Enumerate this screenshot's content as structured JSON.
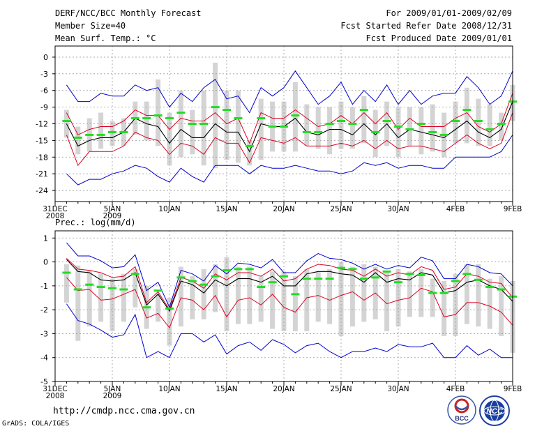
{
  "header": {
    "title": "DERF/NCC/BCC Monthly Forecast",
    "member_size": "Member Size=40",
    "variable": "Mean Surf. Temp.: °C",
    "period": "For 2009/01/01-2009/02/09",
    "started": "Fcst Started Refer Date 2008/12/31",
    "produced": "Fcst Produced Date 2009/01/01"
  },
  "footer": {
    "url": "http://cmdp.ncc.cma.gov.cn",
    "credit": "GrADS: COLA/IGES",
    "logo_left": "BCC",
    "logo_right": "NCC"
  },
  "colors": {
    "envelope": "#0000cc",
    "spread": "#dd0022",
    "mean": "#000000",
    "median": "#22dd22",
    "box": "#d4d4d4",
    "grid": "#999999"
  },
  "chart_data": [
    {
      "type": "line",
      "title": "Mean Surf. Temp.: °C",
      "ylabel": "°C",
      "ylim": [
        -26,
        2
      ],
      "yticks": [
        0,
        -3,
        -6,
        -9,
        -12,
        -15,
        -18,
        -21,
        -24
      ],
      "xlim": [
        0,
        40
      ],
      "xticks": [
        {
          "day": 0,
          "label": "31DEC",
          "sub": "2008"
        },
        {
          "day": 5,
          "label": "5JAN",
          "sub": "2009"
        },
        {
          "day": 10,
          "label": "10JAN",
          "sub": ""
        },
        {
          "day": 15,
          "label": "15JAN",
          "sub": ""
        },
        {
          "day": 20,
          "label": "20JAN",
          "sub": ""
        },
        {
          "day": 25,
          "label": "25JAN",
          "sub": ""
        },
        {
          "day": 30,
          "label": "30JAN",
          "sub": ""
        },
        {
          "day": 35,
          "label": "4FEB",
          "sub": ""
        },
        {
          "day": 40,
          "label": "9FEB",
          "sub": ""
        }
      ],
      "grid": true,
      "x": [
        1,
        2,
        3,
        4,
        5,
        6,
        7,
        8,
        9,
        10,
        11,
        12,
        13,
        14,
        15,
        16,
        17,
        18,
        19,
        20,
        21,
        22,
        23,
        24,
        25,
        26,
        27,
        28,
        29,
        30,
        31,
        32,
        33,
        34,
        35,
        36,
        37,
        38,
        39,
        40
      ],
      "series": [
        {
          "name": "max",
          "values": [
            -5,
            -8,
            -8,
            -6.5,
            -7,
            -7,
            -5,
            -6,
            -5.5,
            -9,
            -6.5,
            -8,
            -5.5,
            -4,
            -7.5,
            -7,
            -10,
            -5.5,
            -7,
            -5.5,
            -2.5,
            -5.5,
            -8.5,
            -7,
            -4.5,
            -8.5,
            -6,
            -8,
            -5,
            -8.5,
            -6,
            -8.5,
            -7,
            -6.5,
            -6.5,
            -3.5,
            -5.5,
            -8.5,
            -7,
            -2.5
          ]
        },
        {
          "name": "upper",
          "values": [
            -10,
            -14,
            -13,
            -12.5,
            -12.5,
            -11.5,
            -9.5,
            -10.5,
            -10.5,
            -13,
            -11,
            -11.5,
            -11.5,
            -10,
            -12,
            -11,
            -15.5,
            -10,
            -11,
            -11,
            -9.5,
            -11,
            -12.5,
            -12,
            -10.5,
            -12,
            -10,
            -12,
            -10,
            -13,
            -11,
            -12.5,
            -12.5,
            -12.5,
            -11,
            -10,
            -12.5,
            -13.5,
            -12,
            -6.5
          ]
        },
        {
          "name": "mean",
          "values": [
            -12,
            -16,
            -15,
            -14.5,
            -14.5,
            -13.5,
            -11,
            -12,
            -12.5,
            -15.5,
            -13,
            -14.5,
            -14.5,
            -12,
            -13.5,
            -13.5,
            -17,
            -12,
            -12.5,
            -12.5,
            -11,
            -13.5,
            -14,
            -13,
            -13,
            -14,
            -12,
            -14,
            -12,
            -14.5,
            -13,
            -13.5,
            -14,
            -14.5,
            -13,
            -11.5,
            -13.5,
            -14.5,
            -13,
            -8
          ]
        },
        {
          "name": "lower",
          "values": [
            -14,
            -19.5,
            -17,
            -17,
            -17,
            -16,
            -13.5,
            -14.5,
            -15,
            -17.5,
            -15.5,
            -16,
            -17.5,
            -14.5,
            -15.5,
            -15.5,
            -19,
            -14.5,
            -15,
            -15.5,
            -14.5,
            -16,
            -16,
            -16,
            -15.5,
            -16,
            -15,
            -16.5,
            -15,
            -16.5,
            -16,
            -16,
            -16.5,
            -17,
            -15.5,
            -14,
            -15.5,
            -16.5,
            -15.5,
            -10
          ]
        },
        {
          "name": "min",
          "values": [
            -21,
            -23,
            -22,
            -22,
            -21,
            -20.5,
            -19.5,
            -20,
            -21.5,
            -22.5,
            -20,
            -21.5,
            -22.5,
            -19.5,
            -19.5,
            -19.5,
            -21,
            -19.5,
            -20,
            -20,
            -19.5,
            -20,
            -20.5,
            -20.5,
            -21,
            -20.5,
            -19,
            -19.5,
            -19,
            -20,
            -19.5,
            -19.5,
            -20,
            -20,
            -18,
            -18,
            -18,
            -18,
            -17,
            -14
          ]
        },
        {
          "name": "median",
          "values": [
            -11.5,
            -14.5,
            -14,
            -14,
            -13.5,
            -13.5,
            -11,
            -11,
            -10.5,
            -11,
            -10,
            -12,
            -12,
            -9,
            -9.5,
            -11,
            -16,
            -11,
            -12.5,
            -12.5,
            -10.5,
            -13.5,
            -13.5,
            -12,
            -11.5,
            -12,
            -9.5,
            -13.5,
            -11.5,
            -12.5,
            -13,
            -12,
            -13.5,
            -14,
            -11.5,
            -9.5,
            -11.5,
            -13,
            -12,
            -8
          ]
        },
        {
          "name": "box_top",
          "values": [
            -9.5,
            -12.5,
            -11,
            -10,
            -11.5,
            -11,
            -8,
            -8,
            -4,
            -10,
            -6,
            -9.5,
            -6,
            -1,
            -6,
            -6,
            -15,
            -7.5,
            -8,
            -8,
            -4.5,
            -8.5,
            -9,
            -9,
            -8,
            -9,
            -7,
            -9.5,
            -8,
            -9,
            -9,
            -9,
            -8.5,
            -10,
            -8,
            -5.5,
            -7.5,
            -8.5,
            -10,
            -5
          ]
        },
        {
          "name": "box_bottom",
          "values": [
            -14.5,
            -17.5,
            -17,
            -16.5,
            -16,
            -16,
            -14,
            -15,
            -16,
            -19.5,
            -18,
            -17.5,
            -19.5,
            -20,
            -18.5,
            -19,
            -19.5,
            -18.5,
            -17,
            -17,
            -17,
            -16,
            -16.5,
            -17.5,
            -16.5,
            -16.5,
            -15.5,
            -18,
            -16,
            -18,
            -16,
            -17.5,
            -17,
            -18,
            -15.5,
            -15.5,
            -16,
            -16,
            -15,
            -11.5
          ]
        }
      ]
    },
    {
      "type": "line",
      "title": "Prec.: log(mm/d)",
      "ylabel": "log(mm/d)",
      "ylim": [
        -5,
        1.3
      ],
      "yticks": [
        1,
        0,
        -1,
        -2,
        -3,
        -4,
        -5
      ],
      "xlim": [
        0,
        40
      ],
      "xticks": [
        {
          "day": 0,
          "label": "31DEC",
          "sub": "2008"
        },
        {
          "day": 5,
          "label": "5JAN",
          "sub": "2009"
        },
        {
          "day": 10,
          "label": "10JAN",
          "sub": ""
        },
        {
          "day": 15,
          "label": "15JAN",
          "sub": ""
        },
        {
          "day": 20,
          "label": "20JAN",
          "sub": ""
        },
        {
          "day": 25,
          "label": "25JAN",
          "sub": ""
        },
        {
          "day": 30,
          "label": "30JAN",
          "sub": ""
        },
        {
          "day": 35,
          "label": "4FEB",
          "sub": ""
        },
        {
          "day": 40,
          "label": "9FEB",
          "sub": ""
        }
      ],
      "grid": true,
      "x": [
        1,
        2,
        3,
        4,
        5,
        6,
        7,
        8,
        9,
        10,
        11,
        12,
        13,
        14,
        15,
        16,
        17,
        18,
        19,
        20,
        21,
        22,
        23,
        24,
        25,
        26,
        27,
        28,
        29,
        30,
        31,
        32,
        33,
        34,
        35,
        36,
        37,
        38,
        39,
        40
      ],
      "series": [
        {
          "name": "max",
          "values": [
            0.8,
            0.25,
            0.25,
            0.05,
            -0.25,
            -0.2,
            0.3,
            -1.2,
            -0.85,
            -1.9,
            -0.35,
            -0.5,
            -0.8,
            -0.15,
            -0.5,
            -0.05,
            -0.1,
            -0.25,
            0.1,
            -0.45,
            -0.45,
            0.05,
            0.35,
            0.15,
            0.1,
            -0.05,
            -0.3,
            -0.1,
            -0.3,
            -0.15,
            -0.25,
            0.2,
            0.05,
            -0.7,
            -0.7,
            -0.1,
            -0.2,
            -0.45,
            -0.5,
            -1
          ]
        },
        {
          "name": "upper",
          "values": [
            0.15,
            -0.3,
            -0.35,
            -0.45,
            -0.65,
            -0.6,
            -0.2,
            -1.7,
            -1.25,
            -2,
            -0.65,
            -0.8,
            -1.1,
            -0.5,
            -0.75,
            -0.45,
            -0.45,
            -0.6,
            -0.3,
            -0.8,
            -0.7,
            -0.3,
            -0.1,
            -0.15,
            -0.3,
            -0.35,
            -0.6,
            -0.3,
            -0.6,
            -0.45,
            -0.55,
            -0.2,
            -0.35,
            -1.15,
            -1.05,
            -0.5,
            -0.6,
            -0.85,
            -0.9,
            -1.5
          ]
        },
        {
          "name": "mean",
          "values": [
            0.1,
            -0.4,
            -0.45,
            -0.75,
            -0.8,
            -0.75,
            -0.45,
            -1.8,
            -1.35,
            -2.05,
            -0.8,
            -0.95,
            -1.3,
            -0.75,
            -1,
            -0.7,
            -0.7,
            -0.85,
            -0.6,
            -1,
            -1,
            -0.5,
            -0.4,
            -0.4,
            -0.5,
            -0.55,
            -0.85,
            -0.45,
            -0.85,
            -0.7,
            -0.75,
            -0.45,
            -0.55,
            -1.3,
            -1.2,
            -0.85,
            -0.75,
            -1,
            -1.15,
            -1.65
          ]
        },
        {
          "name": "lower",
          "values": [
            -0.65,
            -1.2,
            -1.15,
            -1.6,
            -1.55,
            -1.35,
            -1.15,
            -2.35,
            -2.15,
            -2.75,
            -1.5,
            -1.6,
            -2,
            -1.4,
            -2.3,
            -1.6,
            -1.5,
            -1.8,
            -1.35,
            -1.9,
            -2.1,
            -1.5,
            -1.4,
            -1.6,
            -1.4,
            -1.25,
            -1.6,
            -1.3,
            -1.75,
            -1.6,
            -1.5,
            -1.1,
            -1.25,
            -2.3,
            -2.2,
            -1.7,
            -1.7,
            -1.85,
            -2.1,
            -2.65
          ]
        },
        {
          "name": "min",
          "values": [
            -1.75,
            -2.45,
            -2.6,
            -2.85,
            -3.15,
            -3.05,
            -2.2,
            -4,
            -3.75,
            -4,
            -3,
            -3,
            -3.35,
            -3.05,
            -3.85,
            -3.5,
            -3.35,
            -3.7,
            -3.25,
            -3.45,
            -3.8,
            -3.5,
            -3.4,
            -3.75,
            -4,
            -3.75,
            -3.75,
            -3.6,
            -3.75,
            -3.45,
            -3.55,
            -3.55,
            -3.4,
            -4,
            -4,
            -3.5,
            -3.9,
            -3.65,
            -4,
            -4
          ]
        },
        {
          "name": "median",
          "values": [
            -0.45,
            -1.15,
            -0.95,
            -1.05,
            -1.1,
            -1.15,
            -0.5,
            -1.9,
            -1.2,
            -1.95,
            -0.65,
            -0.8,
            -0.95,
            -0.6,
            -0.35,
            -0.3,
            -0.3,
            -1.05,
            -0.85,
            -0.6,
            -1.35,
            -0.7,
            -0.7,
            -0.7,
            -0.25,
            -0.3,
            -0.7,
            -0.65,
            -0.4,
            -0.85,
            -0.5,
            -0.55,
            -1.3,
            -1.3,
            -0.8,
            -0.5,
            -0.75,
            -1.05,
            -1.15,
            -1.45
          ]
        },
        {
          "name": "box_top",
          "values": [
            -0.1,
            -0.15,
            -0.35,
            -0.5,
            -0.7,
            -0.5,
            -0.3,
            -1,
            -1.3,
            -1.5,
            -0.2,
            -0.6,
            -0.3,
            -0.1,
            0.2,
            -0.2,
            -0.2,
            -0.6,
            -0.4,
            -0.4,
            -0.6,
            -0.3,
            -0.4,
            -0.3,
            0,
            -0.2,
            -0.1,
            -0.2,
            -0.4,
            -0.3,
            -0.4,
            -0.3,
            -0.7,
            -0.8,
            -0.5,
            -0.1,
            -0.1,
            -0.7,
            -0.6,
            -0.8
          ]
        },
        {
          "name": "box_bottom",
          "values": [
            -1.7,
            -3.3,
            -2.7,
            -2.5,
            -2.9,
            -2.5,
            -1.9,
            -2.8,
            -2.5,
            -3.5,
            -2.7,
            -2.4,
            -2.4,
            -2.1,
            -2.9,
            -2.6,
            -2.6,
            -2.5,
            -2.8,
            -2.9,
            -2.9,
            -2.9,
            -2.5,
            -2.6,
            -3.1,
            -2.7,
            -2.5,
            -2.4,
            -2.9,
            -2.7,
            -2.3,
            -2.3,
            -2.3,
            -3.1,
            -3.1,
            -2.6,
            -2.7,
            -2.8,
            -3.1,
            -3.8
          ]
        }
      ]
    }
  ]
}
